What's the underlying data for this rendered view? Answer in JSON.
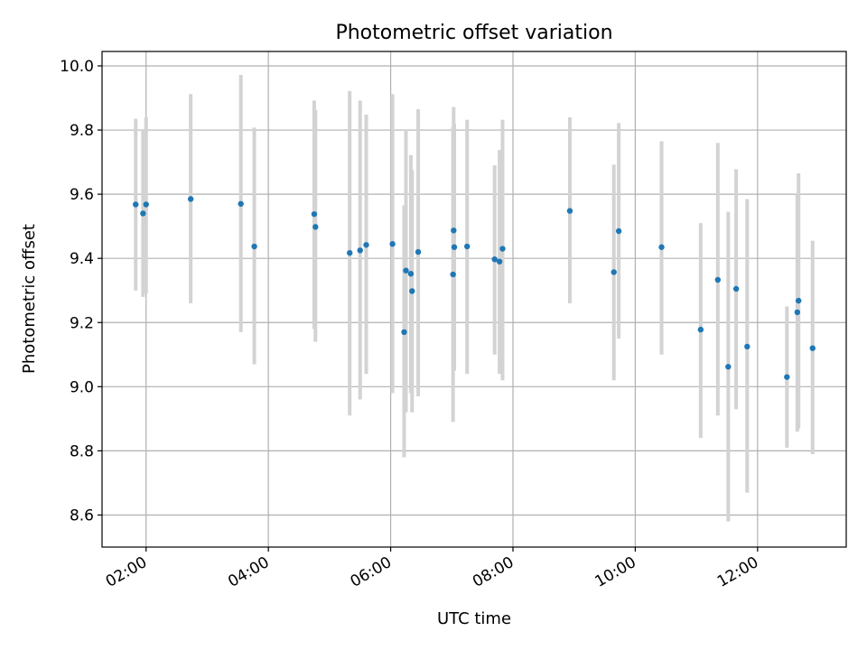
{
  "chart_data": {
    "type": "scatter",
    "title": "Photometric offset variation",
    "xlabel": "UTC time",
    "ylabel": "Photometric offset",
    "xlim": [
      1.28,
      13.45
    ],
    "ylim": [
      8.5,
      10.045
    ],
    "x_ticks": [
      {
        "value": 2,
        "label": "02:00"
      },
      {
        "value": 4,
        "label": "04:00"
      },
      {
        "value": 6,
        "label": "06:00"
      },
      {
        "value": 8,
        "label": "08:00"
      },
      {
        "value": 10,
        "label": "10:00"
      },
      {
        "value": 12,
        "label": "12:00"
      }
    ],
    "y_ticks": [
      {
        "value": 8.6,
        "label": "8.6"
      },
      {
        "value": 8.8,
        "label": "8.8"
      },
      {
        "value": 9.0,
        "label": "9.0"
      },
      {
        "value": 9.2,
        "label": "9.2"
      },
      {
        "value": 9.4,
        "label": "9.4"
      },
      {
        "value": 9.6,
        "label": "9.6"
      },
      {
        "value": 9.8,
        "label": "9.8"
      },
      {
        "value": 10.0,
        "label": "10.0"
      }
    ],
    "grid": true,
    "point_color": "#1f77b4",
    "errorbar_color": "#d3d3d3",
    "points": [
      {
        "x": 1.83,
        "y": 9.568,
        "low": 9.3,
        "high": 9.835
      },
      {
        "x": 1.95,
        "y": 9.54,
        "low": 9.28,
        "high": 9.8
      },
      {
        "x": 2.0,
        "y": 9.568,
        "low": 9.29,
        "high": 9.84
      },
      {
        "x": 2.73,
        "y": 9.585,
        "low": 9.26,
        "high": 9.912
      },
      {
        "x": 3.55,
        "y": 9.57,
        "low": 9.17,
        "high": 9.972
      },
      {
        "x": 3.77,
        "y": 9.437,
        "low": 9.07,
        "high": 9.808
      },
      {
        "x": 4.75,
        "y": 9.538,
        "low": 9.18,
        "high": 9.892
      },
      {
        "x": 4.77,
        "y": 9.498,
        "low": 9.14,
        "high": 9.862
      },
      {
        "x": 5.33,
        "y": 9.417,
        "low": 8.91,
        "high": 9.922
      },
      {
        "x": 5.5,
        "y": 9.425,
        "low": 8.96,
        "high": 9.892
      },
      {
        "x": 5.6,
        "y": 9.442,
        "low": 9.04,
        "high": 9.848
      },
      {
        "x": 6.03,
        "y": 9.445,
        "low": 8.98,
        "high": 9.912
      },
      {
        "x": 6.22,
        "y": 9.17,
        "low": 8.78,
        "high": 9.565
      },
      {
        "x": 6.25,
        "y": 9.362,
        "low": 8.92,
        "high": 9.8
      },
      {
        "x": 6.33,
        "y": 9.352,
        "low": 8.98,
        "high": 9.722
      },
      {
        "x": 6.35,
        "y": 9.298,
        "low": 8.92,
        "high": 9.675
      },
      {
        "x": 6.45,
        "y": 9.42,
        "low": 8.97,
        "high": 9.865
      },
      {
        "x": 7.02,
        "y": 9.35,
        "low": 8.89,
        "high": 9.81
      },
      {
        "x": 7.03,
        "y": 9.487,
        "low": 9.1,
        "high": 9.872
      },
      {
        "x": 7.04,
        "y": 9.435,
        "low": 9.05,
        "high": 9.82
      },
      {
        "x": 7.25,
        "y": 9.437,
        "low": 9.04,
        "high": 9.832
      },
      {
        "x": 7.7,
        "y": 9.397,
        "low": 9.1,
        "high": 9.69
      },
      {
        "x": 7.78,
        "y": 9.39,
        "low": 9.04,
        "high": 9.738
      },
      {
        "x": 7.83,
        "y": 9.43,
        "low": 9.02,
        "high": 9.832
      },
      {
        "x": 8.93,
        "y": 9.548,
        "low": 9.26,
        "high": 9.84
      },
      {
        "x": 9.65,
        "y": 9.357,
        "low": 9.02,
        "high": 9.692
      },
      {
        "x": 9.73,
        "y": 9.485,
        "low": 9.15,
        "high": 9.822
      },
      {
        "x": 10.43,
        "y": 9.435,
        "low": 9.1,
        "high": 9.765
      },
      {
        "x": 11.07,
        "y": 9.178,
        "low": 8.84,
        "high": 9.51
      },
      {
        "x": 11.35,
        "y": 9.333,
        "low": 8.91,
        "high": 9.76
      },
      {
        "x": 11.52,
        "y": 9.062,
        "low": 8.58,
        "high": 9.545
      },
      {
        "x": 11.65,
        "y": 9.305,
        "low": 8.93,
        "high": 9.678
      },
      {
        "x": 11.83,
        "y": 9.125,
        "low": 8.67,
        "high": 9.585
      },
      {
        "x": 12.48,
        "y": 9.03,
        "low": 8.81,
        "high": 9.25
      },
      {
        "x": 12.65,
        "y": 9.232,
        "low": 8.86,
        "high": 9.6
      },
      {
        "x": 12.67,
        "y": 9.268,
        "low": 8.87,
        "high": 9.665
      },
      {
        "x": 12.9,
        "y": 9.12,
        "low": 8.79,
        "high": 9.455
      }
    ]
  }
}
